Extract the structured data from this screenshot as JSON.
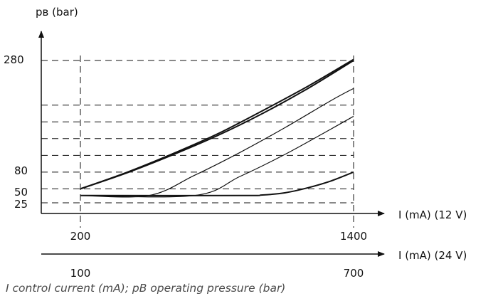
{
  "chart_data": {
    "type": "line",
    "ylabel": "pв (bar)",
    "xlabel_12v": "I (mA) (12 V)",
    "xlabel_24v": "I (mA) (24 V)",
    "y_ticks": [
      "280",
      "80",
      "50",
      "25"
    ],
    "x_ticks_12v": [
      "200",
      "1400"
    ],
    "x_ticks_24v": [
      "100",
      "700"
    ],
    "xlim": [
      200,
      1400
    ],
    "ylim": [
      25,
      280
    ],
    "dashed_levels": [
      25,
      50,
      80,
      110,
      140,
      170,
      200,
      280
    ],
    "series": [
      {
        "x": [
          200,
          400,
          600,
          800,
          1000,
          1200,
          1400
        ],
        "y": [
          50,
          78,
          110,
          145,
          185,
          230,
          280
        ]
      },
      {
        "x": [
          200,
          400,
          600,
          800,
          1000,
          1200,
          1400
        ],
        "y": [
          50,
          79,
          112,
          148,
          190,
          234,
          282
        ]
      },
      {
        "x": [
          200,
          500,
          700,
          900,
          1100,
          1300,
          1400
        ],
        "y": [
          38,
          38,
          74,
          115,
          160,
          208,
          230
        ]
      },
      {
        "x": [
          200,
          700,
          900,
          1100,
          1300,
          1400
        ],
        "y": [
          38,
          38,
          72,
          112,
          157,
          180
        ]
      },
      {
        "x": [
          200,
          900,
          1000,
          1100,
          1200,
          1300,
          1400
        ],
        "y": [
          38,
          38,
          39,
          43,
          52,
          64,
          80
        ]
      }
    ]
  },
  "caption": "I control current (mA); pB operating pressure (bar)"
}
